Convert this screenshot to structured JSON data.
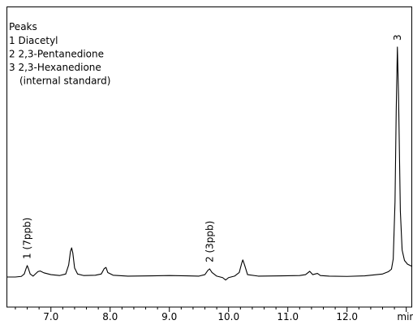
{
  "chart_data": {
    "type": "line",
    "x": [
      6.25,
      6.4,
      6.5,
      6.55,
      6.58,
      6.6,
      6.62,
      6.65,
      6.7,
      6.78,
      6.82,
      6.88,
      7.0,
      7.15,
      7.25,
      7.3,
      7.33,
      7.35,
      7.37,
      7.4,
      7.45,
      7.55,
      7.75,
      7.85,
      7.9,
      7.93,
      7.96,
      8.05,
      8.3,
      8.7,
      9.0,
      9.3,
      9.5,
      9.6,
      9.65,
      9.68,
      9.72,
      9.8,
      9.9,
      9.95,
      10.0,
      10.1,
      10.18,
      10.22,
      10.24,
      10.27,
      10.32,
      10.5,
      10.9,
      11.2,
      11.3,
      11.37,
      11.42,
      11.5,
      11.55,
      11.7,
      12.0,
      12.3,
      12.6,
      12.7,
      12.75,
      12.78,
      12.81,
      12.83,
      12.85,
      12.87,
      12.9,
      12.93,
      12.97,
      13.02,
      13.1
    ],
    "series": [
      {
        "color": "#000000",
        "values": [
          0,
          0,
          0.2,
          1,
          2.8,
          3.8,
          2.8,
          1,
          0.3,
          1.8,
          2,
          1.4,
          0.8,
          0.5,
          1,
          4,
          8.5,
          9.7,
          8,
          3,
          1,
          0.5,
          0.6,
          1,
          2.8,
          3.2,
          1.5,
          0.6,
          0.3,
          0.4,
          0.5,
          0.4,
          0.3,
          0.8,
          2.2,
          2.7,
          1.5,
          0.3,
          -0.2,
          -1,
          -0.2,
          0.3,
          1.5,
          4.5,
          5.7,
          4,
          0.8,
          0.3,
          0.4,
          0.5,
          0.8,
          1.9,
          0.8,
          1.2,
          0.5,
          0.3,
          0.2,
          0.4,
          1,
          1.8,
          2.6,
          6,
          25,
          55,
          76.5,
          60,
          22,
          9,
          5.5,
          4.3,
          3.5
        ]
      }
    ],
    "xlim": [
      6.25,
      13.1
    ],
    "ylim": [
      -10,
      90
    ],
    "xticks": [
      {
        "value": 7,
        "label": "7.0"
      },
      {
        "value": 8,
        "label": "8.0"
      },
      {
        "value": 9,
        "label": "9.0"
      },
      {
        "value": 10,
        "label": "10.0"
      },
      {
        "value": 11,
        "label": "11.0"
      },
      {
        "value": 12,
        "label": "12.0"
      },
      {
        "value": 13,
        "label": "min"
      }
    ],
    "xminorticks": [
      6.4,
      6.6,
      6.8,
      7.2,
      7.4,
      7.6,
      7.8,
      8.2,
      8.4,
      8.6,
      8.8,
      9.2,
      9.4,
      9.6,
      9.8,
      10.2,
      10.4,
      10.6,
      10.8,
      11.2,
      11.4,
      11.6,
      11.8,
      12.2,
      12.4,
      12.6,
      12.8
    ],
    "legend": {
      "title": "Peaks",
      "items": [
        "1 Diacetyl",
        "2 2,3-Pentanedione",
        "3 2,3-Hexanedione",
        "(internal standard)"
      ]
    },
    "peak_labels": [
      {
        "label": "1 (7ppb)",
        "x": 6.6
      },
      {
        "label": "2 (3ppb)",
        "x": 9.68
      },
      {
        "label": "3",
        "x": 12.85
      }
    ]
  }
}
